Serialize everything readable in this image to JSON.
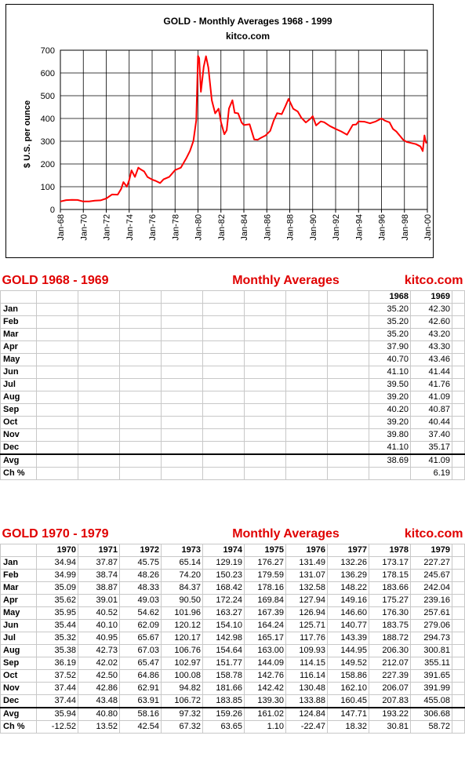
{
  "chart_data": {
    "type": "line",
    "title": "GOLD - Monthly Averages  1968 - 1999",
    "subtitle": "kitco.com",
    "ylabel": "$ U.S. per ounce",
    "xlabel": "",
    "ylim": [
      0,
      700
    ],
    "yticks": [
      "0",
      "100",
      "200",
      "300",
      "400",
      "500",
      "600",
      "700"
    ],
    "xticks": [
      "Jan-68",
      "Jan-70",
      "Jan-72",
      "Jan-74",
      "Jan-76",
      "Jan-78",
      "Jan-80",
      "Jan-82",
      "Jan-84",
      "Jan-86",
      "Jan-88",
      "Jan-90",
      "Jan-92",
      "Jan-94",
      "Jan-96",
      "Jan-98",
      "Jan-00"
    ],
    "xrange": [
      1968.0,
      2000.0
    ],
    "grid": true,
    "series_color": "#ff0000",
    "series": [
      {
        "x": [
          1968.0,
          1968.5,
          1969.0,
          1969.5,
          1969.99,
          1970.5,
          1971.0,
          1971.5,
          1972.0,
          1972.5,
          1973.0,
          1973.3,
          1973.5,
          1973.8,
          1974.0,
          1974.2,
          1974.5,
          1974.8,
          1975.0,
          1975.3,
          1975.6,
          1976.0,
          1976.3,
          1976.7,
          1977.0,
          1977.5,
          1978.0,
          1978.5,
          1979.0,
          1979.3,
          1979.6,
          1979.85,
          1980.0,
          1980.1,
          1980.25,
          1980.5,
          1980.7,
          1980.9,
          1981.2,
          1981.5,
          1981.8,
          1982.0,
          1982.3,
          1982.5,
          1982.7,
          1983.0,
          1983.2,
          1983.5,
          1983.8,
          1984.0,
          1984.5,
          1984.9,
          1985.2,
          1985.5,
          1985.9,
          1986.3,
          1986.6,
          1986.9,
          1987.3,
          1987.6,
          1987.9,
          1988.3,
          1988.7,
          1989.0,
          1989.4,
          1989.8,
          1990.0,
          1990.3,
          1990.7,
          1991.0,
          1991.5,
          1992.0,
          1992.5,
          1993.0,
          1993.5,
          1993.8,
          1994.0,
          1994.5,
          1995.0,
          1995.5,
          1996.0,
          1996.3,
          1996.7,
          1997.0,
          1997.3,
          1997.6,
          1997.9,
          1998.2,
          1998.6,
          1999.0,
          1999.4,
          1999.6,
          1999.75,
          1999.85,
          1999.92
        ],
        "y": [
          35.2,
          41.1,
          42.3,
          41.8,
          35.2,
          35.4,
          38.7,
          40.1,
          48.3,
          65.7,
          65.1,
          90.5,
          120.2,
          100.1,
          129.2,
          172.2,
          143.0,
          183.9,
          176.3,
          167.4,
          142.8,
          131.5,
          125.7,
          116.1,
          132.3,
          143.4,
          173.2,
          183.8,
          227.3,
          257.6,
          300.8,
          391.7,
          675.3,
          665.3,
          517.4,
          627.1,
          673.6,
          623.9,
          480.3,
          422.5,
          443.1,
          384.1,
          330.6,
          348.4,
          443.3,
          480.0,
          425.0,
          422.3,
          381.9,
          370.9,
          374.6,
          307.6,
          306.7,
          315.0,
          325.6,
          345.4,
          390.5,
          423.5,
          419.0,
          451.1,
          486.2,
          442.6,
          430.7,
          404.0,
          382.4,
          398.6,
          409.9,
          369.3,
          387.2,
          383.6,
          366.7,
          354.1,
          342.8,
          328.5,
          371.9,
          373.8,
          387.0,
          385.7,
          378.6,
          387.0,
          399.9,
          390.4,
          383.1,
          354.1,
          342.4,
          324.0,
          306.0,
          296.8,
          292.2,
          287.1,
          277.0,
          256.7,
          325.6,
          299.1,
          290.3
        ]
      }
    ]
  },
  "table1": {
    "title": "GOLD  1968 - 1969",
    "mid": "Monthly Averages",
    "site": "kitco.com",
    "years": [
      "1968",
      "1969"
    ],
    "rows": [
      {
        "label": "Jan",
        "values": [
          "35.20",
          "42.30"
        ]
      },
      {
        "label": "Feb",
        "values": [
          "35.20",
          "42.60"
        ]
      },
      {
        "label": "Mar",
        "values": [
          "35.20",
          "43.20"
        ]
      },
      {
        "label": "Apr",
        "values": [
          "37.90",
          "43.30"
        ]
      },
      {
        "label": "May",
        "values": [
          "40.70",
          "43.46"
        ]
      },
      {
        "label": "Jun",
        "values": [
          "41.10",
          "41.44"
        ]
      },
      {
        "label": "Jul",
        "values": [
          "39.50",
          "41.76"
        ]
      },
      {
        "label": "Aug",
        "values": [
          "39.20",
          "41.09"
        ]
      },
      {
        "label": "Sep",
        "values": [
          "40.20",
          "40.87"
        ]
      },
      {
        "label": "Oct",
        "values": [
          "39.20",
          "40.44"
        ]
      },
      {
        "label": "Nov",
        "values": [
          "39.80",
          "37.40"
        ]
      },
      {
        "label": "Dec",
        "values": [
          "41.10",
          "35.17"
        ]
      }
    ],
    "avg": {
      "label": "Avg",
      "values": [
        "38.69",
        "41.09"
      ]
    },
    "ch": {
      "label": "Ch  %",
      "values": [
        "",
        "6.19"
      ]
    }
  },
  "table2": {
    "title": "GOLD  1970 - 1979",
    "mid": "Monthly Averages",
    "site": "kitco.com",
    "years": [
      "1970",
      "1971",
      "1972",
      "1973",
      "1974",
      "1975",
      "1976",
      "1977",
      "1978",
      "1979"
    ],
    "rows": [
      {
        "label": "Jan",
        "values": [
          "34.94",
          "37.87",
          "45.75",
          "65.14",
          "129.19",
          "176.27",
          "131.49",
          "132.26",
          "173.17",
          "227.27"
        ]
      },
      {
        "label": "Feb",
        "values": [
          "34.99",
          "38.74",
          "48.26",
          "74.20",
          "150.23",
          "179.59",
          "131.07",
          "136.29",
          "178.15",
          "245.67"
        ]
      },
      {
        "label": "Mar",
        "values": [
          "35.09",
          "38.87",
          "48.33",
          "84.37",
          "168.42",
          "178.16",
          "132.58",
          "148.22",
          "183.66",
          "242.04"
        ]
      },
      {
        "label": "Apr",
        "values": [
          "35.62",
          "39.01",
          "49.03",
          "90.50",
          "172.24",
          "169.84",
          "127.94",
          "149.16",
          "175.27",
          "239.16"
        ]
      },
      {
        "label": "May",
        "values": [
          "35.95",
          "40.52",
          "54.62",
          "101.96",
          "163.27",
          "167.39",
          "126.94",
          "146.60",
          "176.30",
          "257.61"
        ]
      },
      {
        "label": "Jun",
        "values": [
          "35.44",
          "40.10",
          "62.09",
          "120.12",
          "154.10",
          "164.24",
          "125.71",
          "140.77",
          "183.75",
          "279.06"
        ]
      },
      {
        "label": "Jul",
        "values": [
          "35.32",
          "40.95",
          "65.67",
          "120.17",
          "142.98",
          "165.17",
          "117.76",
          "143.39",
          "188.72",
          "294.73"
        ]
      },
      {
        "label": "Aug",
        "values": [
          "35.38",
          "42.73",
          "67.03",
          "106.76",
          "154.64",
          "163.00",
          "109.93",
          "144.95",
          "206.30",
          "300.81"
        ]
      },
      {
        "label": "Sep",
        "values": [
          "36.19",
          "42.02",
          "65.47",
          "102.97",
          "151.77",
          "144.09",
          "114.15",
          "149.52",
          "212.07",
          "355.11"
        ]
      },
      {
        "label": "Oct",
        "values": [
          "37.52",
          "42.50",
          "64.86",
          "100.08",
          "158.78",
          "142.76",
          "116.14",
          "158.86",
          "227.39",
          "391.65"
        ]
      },
      {
        "label": "Nov",
        "values": [
          "37.44",
          "42.86",
          "62.91",
          "94.82",
          "181.66",
          "142.42",
          "130.48",
          "162.10",
          "206.07",
          "391.99"
        ]
      },
      {
        "label": "Dec",
        "values": [
          "37.44",
          "43.48",
          "63.91",
          "106.72",
          "183.85",
          "139.30",
          "133.88",
          "160.45",
          "207.83",
          "455.08"
        ]
      }
    ],
    "avg": {
      "label": "Avg",
      "values": [
        "35.94",
        "40.80",
        "58.16",
        "97.32",
        "159.26",
        "161.02",
        "124.84",
        "147.71",
        "193.22",
        "306.68"
      ]
    },
    "ch": {
      "label": "Ch  %",
      "values": [
        "-12.52",
        "13.52",
        "42.54",
        "67.32",
        "63.65",
        "1.10",
        "-22.47",
        "18.32",
        "30.81",
        "58.72"
      ]
    }
  }
}
